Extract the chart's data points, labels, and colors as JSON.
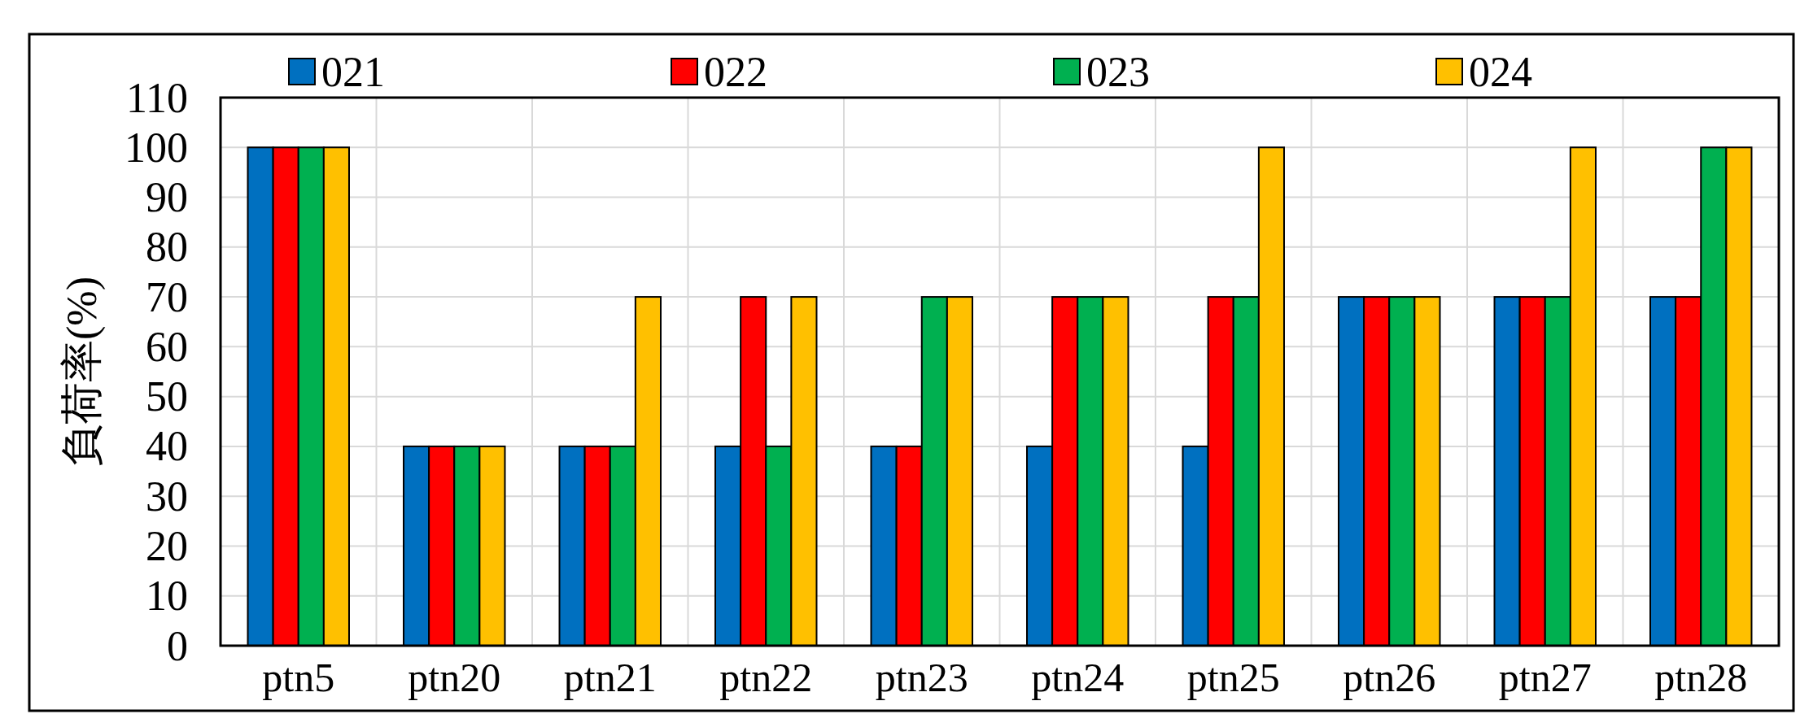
{
  "chart_data": {
    "type": "bar",
    "ylabel": "負荷率(%)",
    "categories": [
      "ptn5",
      "ptn20",
      "ptn21",
      "ptn22",
      "ptn23",
      "ptn24",
      "ptn25",
      "ptn26",
      "ptn27",
      "ptn28"
    ],
    "series": [
      {
        "name": "021",
        "color": "#0070c0",
        "values": [
          100,
          40,
          40,
          40,
          40,
          40,
          40,
          70,
          70,
          70
        ]
      },
      {
        "name": "022",
        "color": "#ff0000",
        "values": [
          100,
          40,
          40,
          70,
          40,
          70,
          70,
          70,
          70,
          70
        ]
      },
      {
        "name": "023",
        "color": "#00b050",
        "values": [
          100,
          40,
          40,
          40,
          70,
          70,
          70,
          70,
          70,
          100
        ]
      },
      {
        "name": "024",
        "color": "#ffc000",
        "values": [
          100,
          40,
          70,
          70,
          70,
          70,
          100,
          70,
          100,
          100
        ]
      }
    ],
    "ylim": [
      0,
      110
    ],
    "yticks": [
      0,
      10,
      20,
      30,
      40,
      50,
      60,
      70,
      80,
      90,
      100,
      110
    ],
    "grid": true,
    "legend": "top"
  }
}
